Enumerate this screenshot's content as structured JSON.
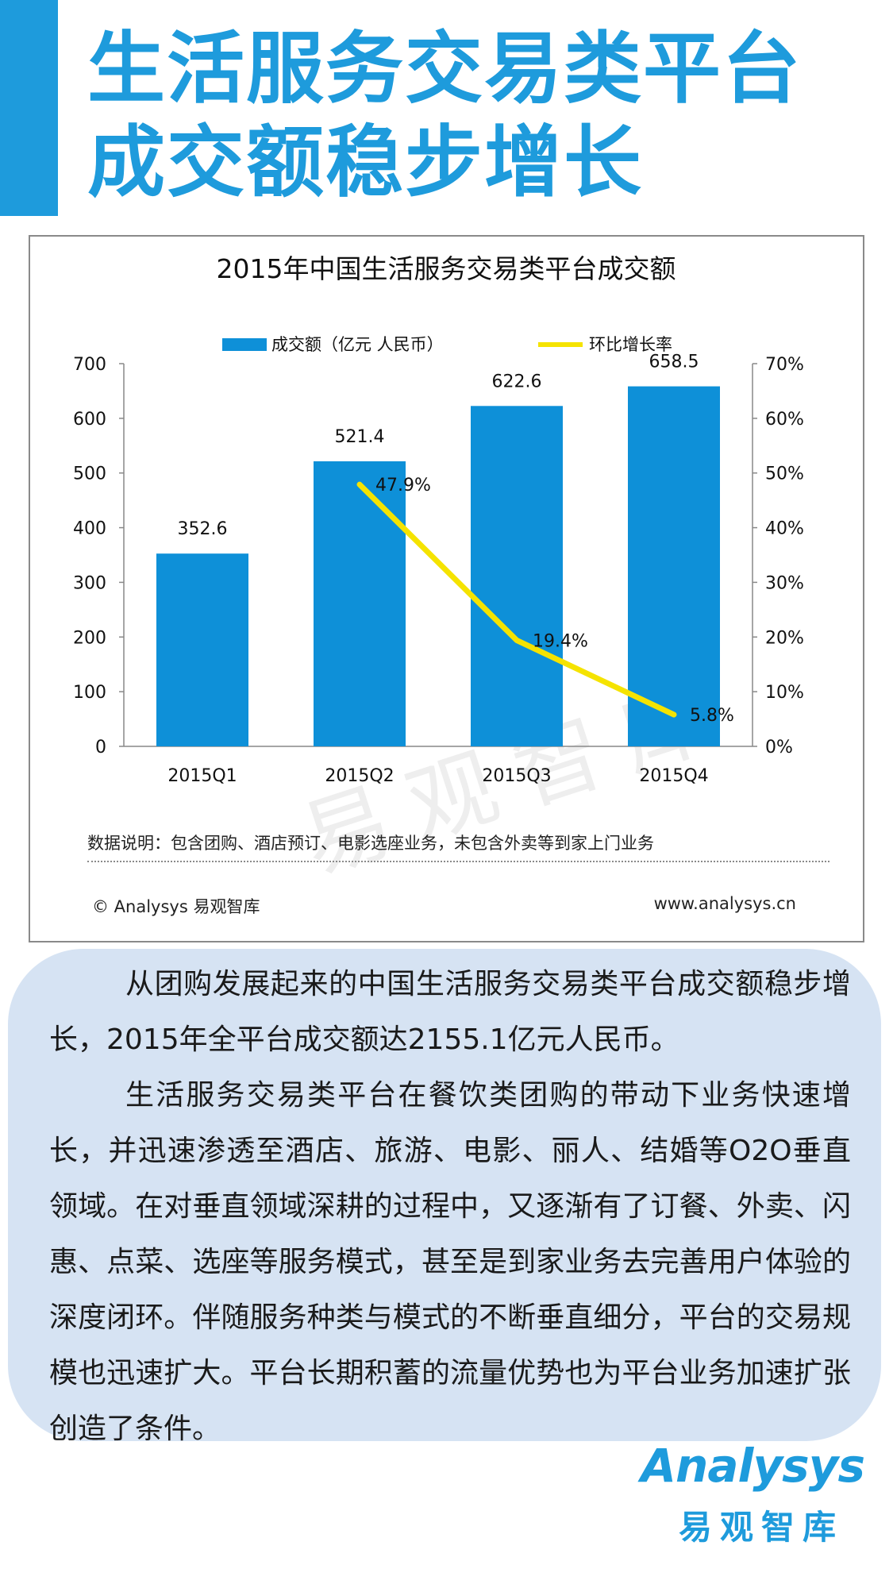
{
  "headline": {
    "line1": "生活服务交易类平台",
    "line2": "成交额稳步增长"
  },
  "chart_data": {
    "type": "bar",
    "title": "2015年中国生活服务交易类平台成交额",
    "categories": [
      "2015Q1",
      "2015Q2",
      "2015Q3",
      "2015Q4"
    ],
    "series": [
      {
        "name": "成交额（亿元 人民币）",
        "type": "bar",
        "axis": "left",
        "values": [
          352.6,
          521.4,
          622.6,
          658.5
        ],
        "labels": [
          "352.6",
          "521.4",
          "622.6",
          "658.5"
        ]
      },
      {
        "name": "环比增长率",
        "type": "line",
        "axis": "right",
        "values": [
          null,
          47.9,
          19.4,
          5.8
        ],
        "labels": [
          "",
          "47.9%",
          "19.4%",
          "5.8%"
        ]
      }
    ],
    "left_axis": {
      "ylim": [
        0,
        700
      ],
      "ticks": [
        "0",
        "100",
        "200",
        "300",
        "400",
        "500",
        "600",
        "700"
      ]
    },
    "right_axis": {
      "ylim": [
        0,
        70
      ],
      "ticks": [
        "0%",
        "10%",
        "20%",
        "30%",
        "40%",
        "50%",
        "60%",
        "70%"
      ]
    },
    "legend_position": "top",
    "colors": {
      "bar": "#0e90d8",
      "line": "#f5e300"
    },
    "grid": false
  },
  "watermark": "易观智库",
  "note": "数据说明：包含团购、酒店预订、电影选座业务，未包含外卖等到家上门业务",
  "copyright": "© Analysys 易观智库",
  "site": "www.analysys.cn",
  "body": {
    "p1": "从团购发展起来的中国生活服务交易类平台成交额稳步增长，2015年全平台成交额达2155.1亿元人民币。",
    "p2": "生活服务交易类平台在餐饮类团购的带动下业务快速增长，并迅速渗透至酒店、旅游、电影、丽人、结婚等O2O垂直领域。在对垂直领域深耕的过程中，又逐渐有了订餐、外卖、闪惠、点菜、选座等服务模式，甚至是到家业务去完善用户体验的深度闭环。伴随服务种类与模式的不断垂直细分，平台的交易规模也迅速扩大。平台长期积蓄的流量优势也为平台业务加速扩张创造了条件。"
  },
  "logo": {
    "word": "Analysys",
    "cn": "易观智库"
  },
  "accent_color": "#1e9bdc"
}
